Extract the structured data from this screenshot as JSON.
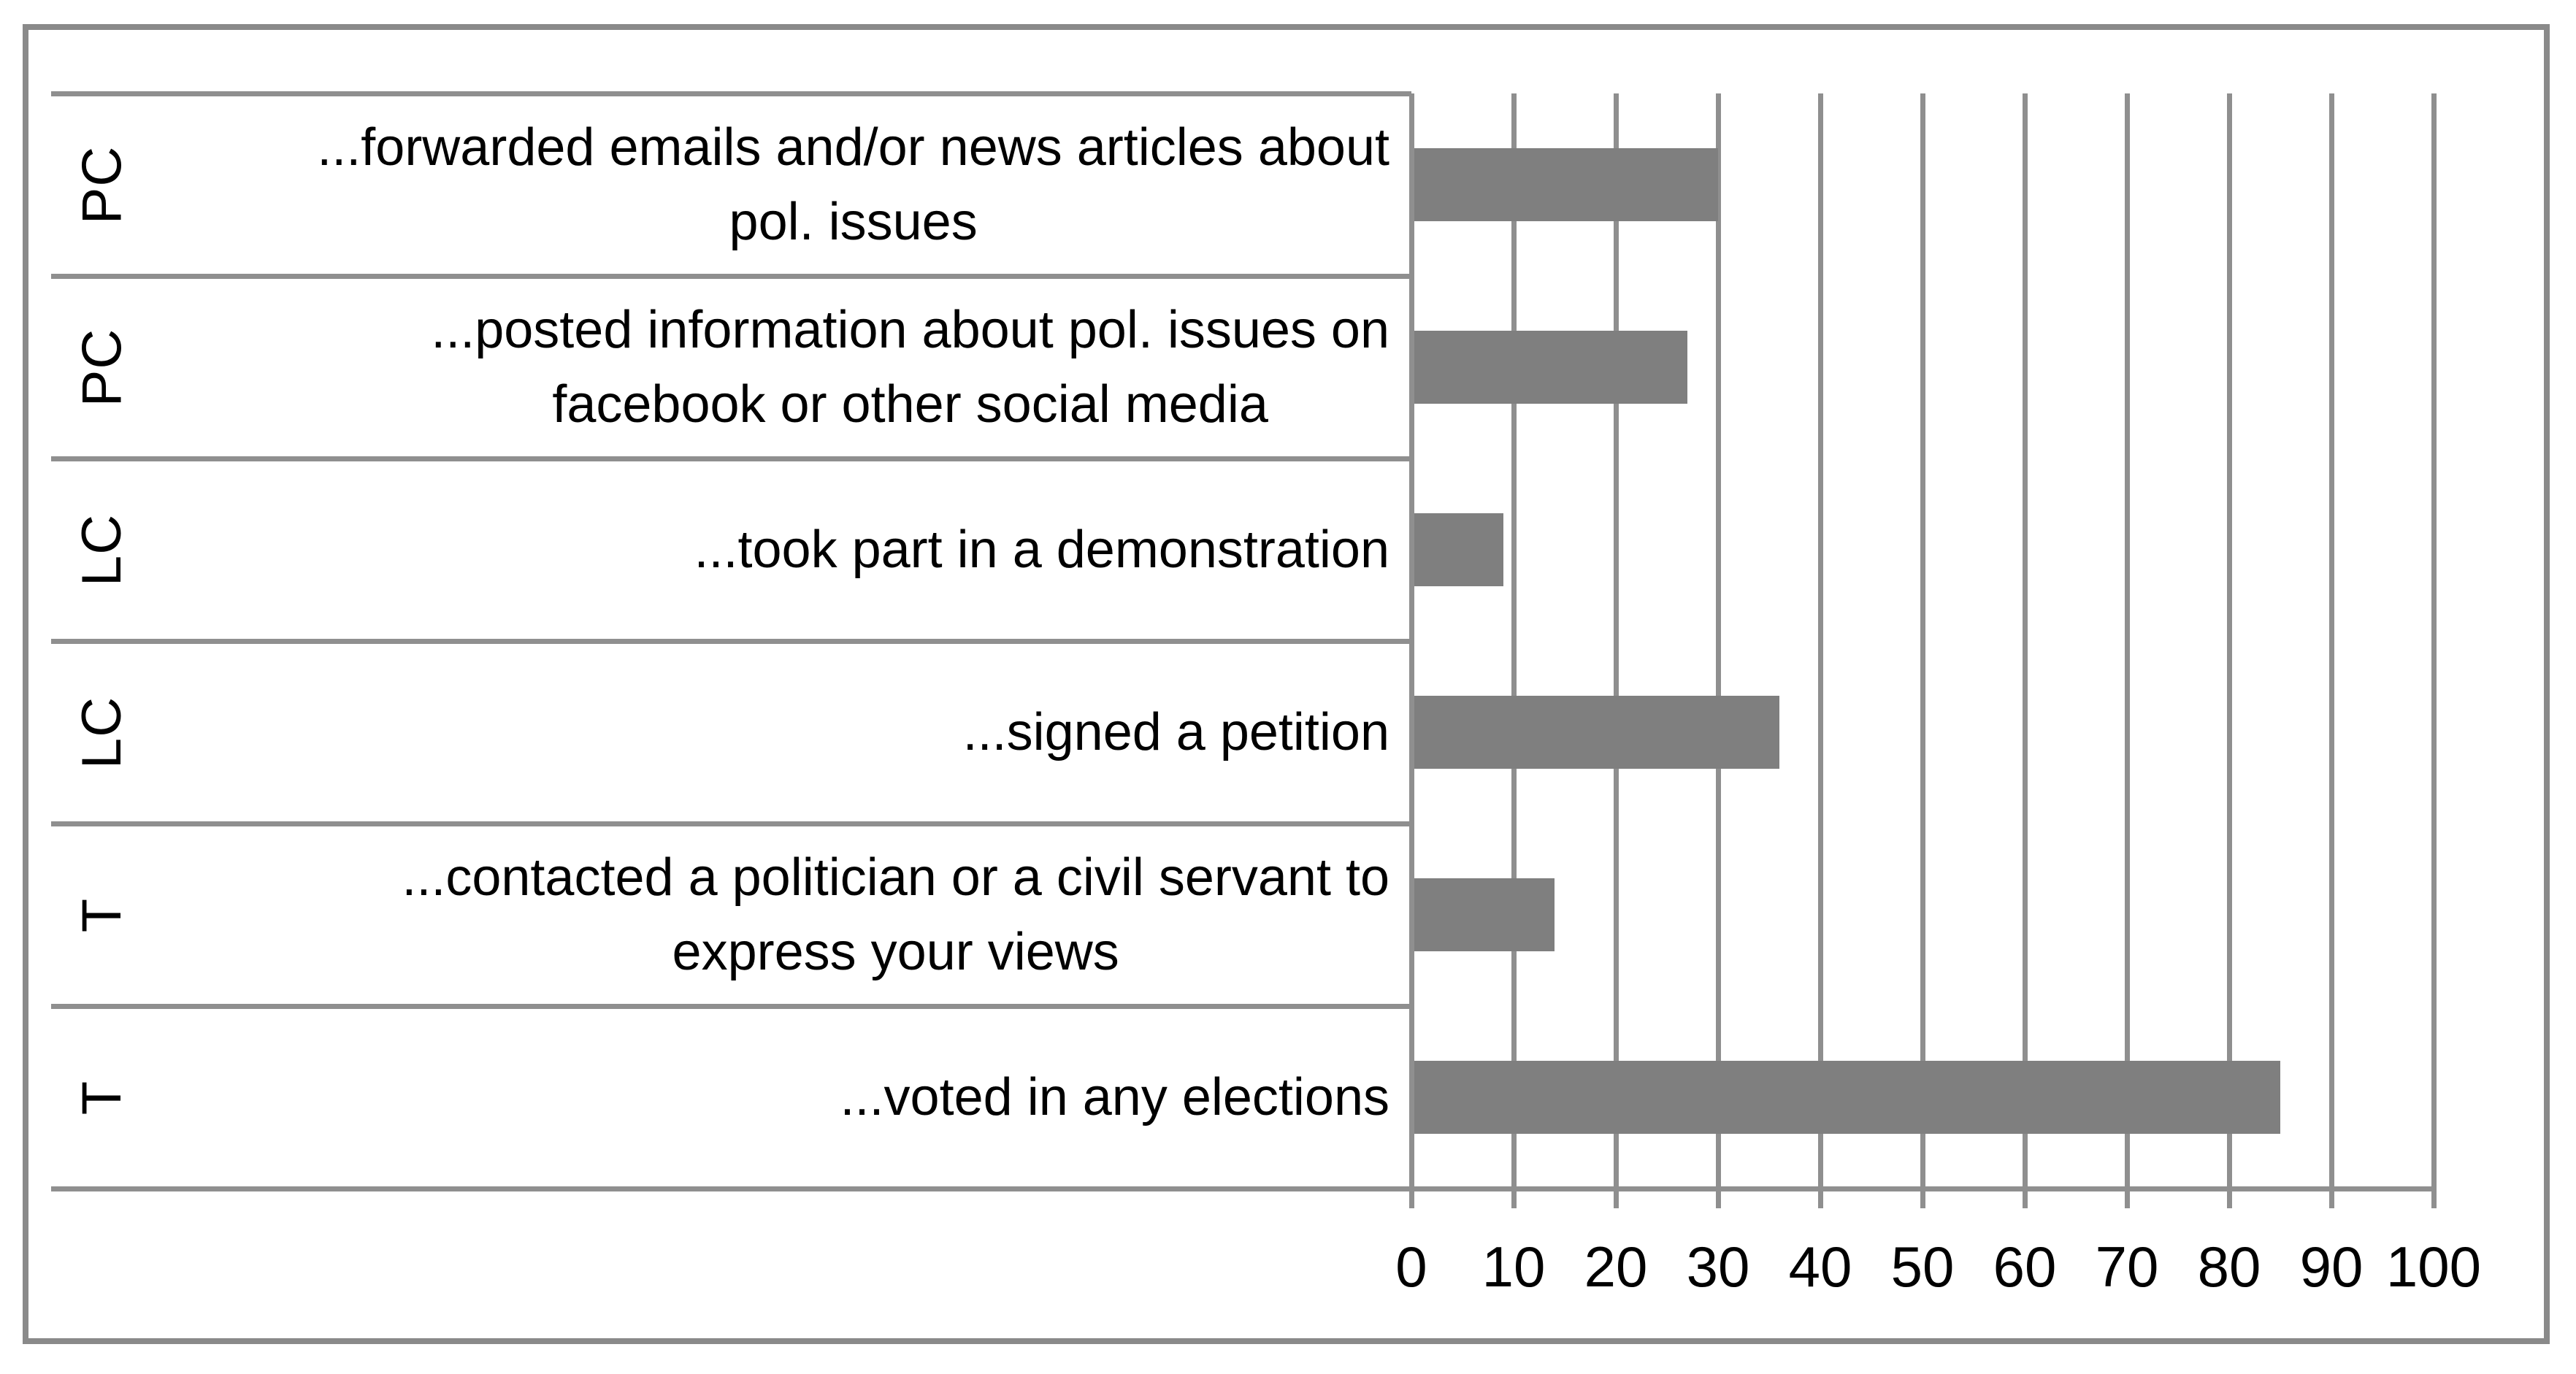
{
  "chart_data": {
    "type": "bar",
    "orientation": "horizontal",
    "title": "",
    "xlabel": "",
    "ylabel": "",
    "xlim": [
      0,
      100
    ],
    "grid": true,
    "legend": false,
    "bar_color": "#7f7f7f",
    "line_color": "#8f8f8f",
    "frame_color": "#8a8a8a",
    "text_color": "#000000",
    "background": "#ffffff",
    "x_ticks": [
      "0",
      "10",
      "20",
      "30",
      "40",
      "50",
      "60",
      "70",
      "80",
      "90",
      "100"
    ],
    "categories": [
      {
        "group": "PC",
        "lines": [
          "...forwarded emails and/or news articles about",
          "pol. issues"
        ],
        "value": 30
      },
      {
        "group": "PC",
        "lines": [
          "...posted information about pol. issues on",
          "facebook or other social media"
        ],
        "value": 27
      },
      {
        "group": "LC",
        "lines": [
          "...took part in a demonstration"
        ],
        "value": 9
      },
      {
        "group": "LC",
        "lines": [
          "...signed a petition"
        ],
        "value": 36
      },
      {
        "group": "T",
        "lines": [
          "...contacted a politician or a civil servant to",
          "express your views"
        ],
        "value": 14
      },
      {
        "group": "T",
        "lines": [
          "...voted in any elections"
        ],
        "value": 85
      }
    ]
  }
}
